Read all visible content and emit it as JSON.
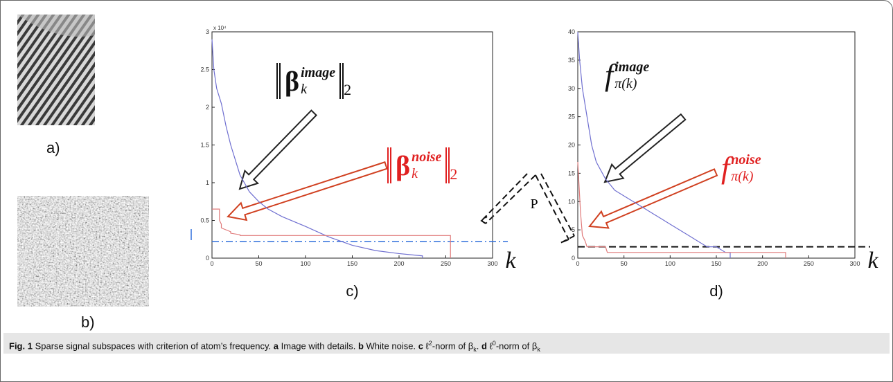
{
  "panels": {
    "a": "a)",
    "b": "b)"
  },
  "middle_label": "P",
  "chart_data": [
    {
      "type": "line",
      "panel_label": "c)",
      "x_label": "k",
      "y_multiplier": "x 10⁴",
      "xlim": [
        0,
        300
      ],
      "xticks": [
        0,
        50,
        100,
        150,
        200,
        250,
        300
      ],
      "ylim": [
        0,
        3
      ],
      "yticks": [
        0,
        0.5,
        1,
        1.5,
        2,
        2.5,
        3
      ],
      "threshold": {
        "value": 0.22,
        "color": "#2f6fdc",
        "style": "dashdot"
      },
      "annotations": {
        "image": {
          "symbol": "β",
          "subscript": "k",
          "superscript": "image",
          "norm_subscript": "2"
        },
        "noise": {
          "symbol": "β",
          "subscript": "k",
          "superscript": "noise",
          "norm_subscript": "2"
        }
      },
      "series": [
        {
          "name": "image",
          "color": "#6f6fd0",
          "x": [
            0,
            2,
            5,
            10,
            15,
            20,
            30,
            40,
            50,
            60,
            75,
            100,
            125,
            150,
            175,
            200,
            225,
            225
          ],
          "values": [
            2.9,
            2.5,
            2.25,
            2.05,
            1.75,
            1.5,
            1.1,
            0.88,
            0.75,
            0.65,
            0.55,
            0.42,
            0.28,
            0.17,
            0.1,
            0.06,
            0.03,
            0
          ]
        },
        {
          "name": "noise",
          "color": "#e07a7a",
          "x": [
            0,
            8,
            8,
            10,
            10,
            20,
            20,
            30,
            30,
            255,
            255
          ],
          "values": [
            0.65,
            0.65,
            0.5,
            0.45,
            0.4,
            0.35,
            0.33,
            0.31,
            0.3,
            0.3,
            0
          ]
        }
      ]
    },
    {
      "type": "line",
      "panel_label": "d)",
      "x_label": "k",
      "xlim": [
        0,
        300
      ],
      "xticks": [
        0,
        50,
        100,
        150,
        200,
        250,
        300
      ],
      "ylim": [
        0,
        40
      ],
      "yticks": [
        0,
        5,
        10,
        15,
        20,
        25,
        30,
        35,
        40
      ],
      "threshold": {
        "value": 2,
        "color": "#111111",
        "style": "dashed"
      },
      "annotations": {
        "image": {
          "symbol": "f",
          "subscript": "π(k)",
          "superscript": "image"
        },
        "noise": {
          "symbol": "f",
          "subscript": "π(k)",
          "superscript": "noise"
        }
      },
      "series": [
        {
          "name": "image",
          "color": "#6f6fd0",
          "x": [
            0,
            2,
            5,
            10,
            15,
            20,
            30,
            40,
            50,
            60,
            70,
            80,
            90,
            100,
            110,
            120,
            130,
            140,
            150,
            160,
            165,
            165
          ],
          "values": [
            40,
            35,
            30,
            25,
            20,
            17,
            14,
            12,
            11,
            10,
            9,
            8,
            7,
            6,
            5,
            4,
            3,
            2,
            2,
            1,
            1,
            0
          ]
        },
        {
          "name": "noise",
          "color": "#e07a7a",
          "x": [
            0,
            3,
            5,
            8,
            10,
            30,
            32,
            225,
            225
          ],
          "values": [
            17,
            8,
            4,
            3,
            2,
            2,
            1,
            1,
            0
          ]
        }
      ]
    }
  ],
  "caption": {
    "label": "Fig. 1",
    "text": "Sparse signal subspaces with criterion of atom’s frequency.",
    "items": [
      {
        "letter": "a",
        "text": "Image with details."
      },
      {
        "letter": "b",
        "text": "White noise."
      },
      {
        "letter": "c",
        "pre": "ℓ",
        "sup": "2",
        "mid": "-norm of β",
        "sub": "k",
        "post": "."
      },
      {
        "letter": "d",
        "pre": "ℓ",
        "sup": "0",
        "mid": "-norm of β",
        "sub": "k"
      }
    ]
  }
}
